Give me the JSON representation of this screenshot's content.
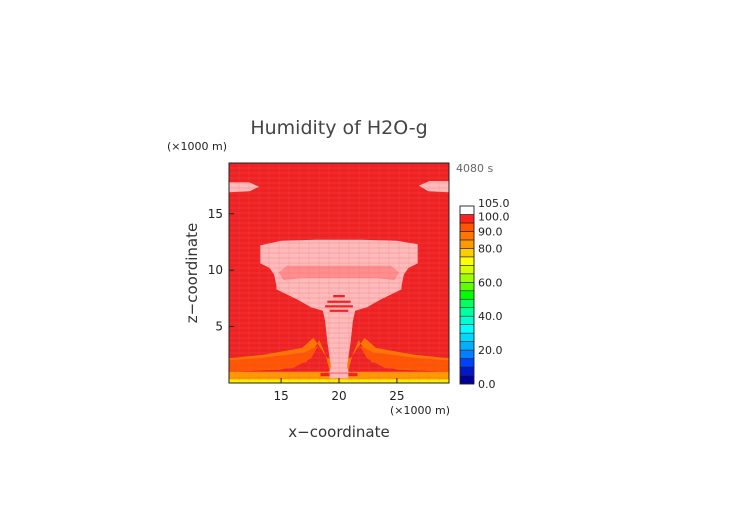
{
  "chart_data": {
    "type": "heatmap",
    "title": "Humidity of H2O-g",
    "time_label": "4080 s",
    "x_unit_label": "(×1000 m)",
    "y_unit_label": "(×1000 m)",
    "xlabel": "x−coordinate",
    "ylabel": "z−coordinate",
    "xlim": [
      10.5,
      29.5
    ],
    "ylim": [
      0,
      19.5
    ],
    "x_ticks": [
      {
        "value": 15,
        "label": "15"
      },
      {
        "value": 20,
        "label": "20"
      },
      {
        "value": 25,
        "label": "25"
      }
    ],
    "y_ticks": [
      {
        "value": 5,
        "label": "5"
      },
      {
        "value": 10,
        "label": "10"
      },
      {
        "value": 15,
        "label": "15"
      }
    ],
    "colorbar": {
      "min": 0,
      "max": 105,
      "levels": [
        {
          "from": 0,
          "to": 5,
          "color": "#000099"
        },
        {
          "from": 5,
          "to": 10,
          "color": "#0019c8"
        },
        {
          "from": 10,
          "to": 15,
          "color": "#0040ff"
        },
        {
          "from": 15,
          "to": 20,
          "color": "#0080ff"
        },
        {
          "from": 20,
          "to": 25,
          "color": "#00b0ff"
        },
        {
          "from": 25,
          "to": 30,
          "color": "#00d8ff"
        },
        {
          "from": 30,
          "to": 35,
          "color": "#00ffff"
        },
        {
          "from": 35,
          "to": 40,
          "color": "#00ffd0"
        },
        {
          "from": 40,
          "to": 45,
          "color": "#00ffa0"
        },
        {
          "from": 45,
          "to": 50,
          "color": "#00ff60"
        },
        {
          "from": 50,
          "to": 55,
          "color": "#00ff00"
        },
        {
          "from": 55,
          "to": 60,
          "color": "#60ff00"
        },
        {
          "from": 60,
          "to": 65,
          "color": "#a0ff00"
        },
        {
          "from": 65,
          "to": 70,
          "color": "#d8ff00"
        },
        {
          "from": 70,
          "to": 75,
          "color": "#ffff00"
        },
        {
          "from": 75,
          "to": 80,
          "color": "#ffcc00"
        },
        {
          "from": 80,
          "to": 85,
          "color": "#ff9900"
        },
        {
          "from": 85,
          "to": 90,
          "color": "#ff7700"
        },
        {
          "from": 90,
          "to": 95,
          "color": "#ff5500"
        },
        {
          "from": 95,
          "to": 100,
          "color": "#ff2222"
        },
        {
          "from": 100,
          "to": 105,
          "color": "#ffffff"
        }
      ],
      "labels": [
        {
          "value": 0,
          "label": "0.0"
        },
        {
          "value": 20,
          "label": "20.0"
        },
        {
          "value": 40,
          "label": "40.0"
        },
        {
          "value": 60,
          "label": "60.0"
        },
        {
          "value": 80,
          "label": "80.0"
        },
        {
          "value": 90,
          "label": "90.0"
        },
        {
          "value": 100,
          "label": "100.0"
        },
        {
          "value": 105,
          "label": "105.0"
        }
      ]
    },
    "field": {
      "background_value": 97,
      "background_color": "#ee2222",
      "grid_color": "#f06262",
      "regions": [
        {
          "id": "surface-yellow",
          "value": 72,
          "color": "#ffee00",
          "points": [
            [
              10.5,
              0
            ],
            [
              29.5,
              0
            ],
            [
              29.5,
              0.35
            ],
            [
              10.5,
              0.35
            ]
          ]
        },
        {
          "id": "surface-orange",
          "value": 82,
          "color": "#ff9900",
          "points": [
            [
              10.5,
              0.35
            ],
            [
              29.5,
              0.35
            ],
            [
              29.5,
              1.0
            ],
            [
              10.5,
              1.0
            ]
          ]
        },
        {
          "id": "low-orange-band",
          "value": 88,
          "color": "#ff7700",
          "points": [
            [
              10.5,
              1.0
            ],
            [
              15,
              1.2
            ],
            [
              17.2,
              1.9
            ],
            [
              18.3,
              3.8
            ],
            [
              18.8,
              2.6
            ],
            [
              19.2,
              1.1
            ],
            [
              20.8,
              1.1
            ],
            [
              21.2,
              2.6
            ],
            [
              21.7,
              3.8
            ],
            [
              22.8,
              1.9
            ],
            [
              25,
              1.2
            ],
            [
              29.5,
              1.0
            ],
            [
              29.5,
              2.2
            ],
            [
              26.5,
              2.5
            ],
            [
              23.2,
              3.1
            ],
            [
              22.2,
              4.0
            ],
            [
              21.0,
              2.2
            ],
            [
              19.0,
              2.2
            ],
            [
              17.8,
              4.0
            ],
            [
              16.8,
              3.1
            ],
            [
              13.5,
              2.5
            ],
            [
              10.5,
              2.2
            ]
          ]
        },
        {
          "id": "left-red-orange",
          "value": 93,
          "color": "#ff5500",
          "points": [
            [
              10.5,
              1.0
            ],
            [
              16,
              1.3
            ],
            [
              17.6,
              2.2
            ],
            [
              18.2,
              3.3
            ],
            [
              17.0,
              2.7
            ],
            [
              13,
              2.2
            ],
            [
              10.5,
              2.0
            ]
          ]
        },
        {
          "id": "right-red-orange",
          "value": 93,
          "color": "#ff5500",
          "points": [
            [
              29.5,
              1.0
            ],
            [
              24,
              1.3
            ],
            [
              22.4,
              2.2
            ],
            [
              21.8,
              3.3
            ],
            [
              23.0,
              2.7
            ],
            [
              27,
              2.2
            ],
            [
              29.5,
              2.0
            ]
          ]
        },
        {
          "id": "cloud-anvil-upper",
          "value": 102,
          "color": "#ffbbbb",
          "points": [
            [
              13.2,
              12.2
            ],
            [
              15,
              12.6
            ],
            [
              18,
              12.7
            ],
            [
              22,
              12.7
            ],
            [
              25,
              12.6
            ],
            [
              26.8,
              12.3
            ],
            [
              26.8,
              10.6
            ],
            [
              26.0,
              10.2
            ],
            [
              25.6,
              9.6
            ],
            [
              25.4,
              8.6
            ],
            [
              24.2,
              8.9
            ],
            [
              23.0,
              9.4
            ],
            [
              21.5,
              9.6
            ],
            [
              18.5,
              9.6
            ],
            [
              17.0,
              9.4
            ],
            [
              15.8,
              8.9
            ],
            [
              14.6,
              8.6
            ],
            [
              14.4,
              9.6
            ],
            [
              14.0,
              10.2
            ],
            [
              13.2,
              10.6
            ]
          ]
        },
        {
          "id": "cloud-anvil-lower",
          "value": 102,
          "color": "#ffbbbb",
          "points": [
            [
              14.6,
              9.8
            ],
            [
              17,
              10.2
            ],
            [
              23,
              10.2
            ],
            [
              25.4,
              9.8
            ],
            [
              25.4,
              8.3
            ],
            [
              24.6,
              7.9
            ],
            [
              23.6,
              7.4
            ],
            [
              22.4,
              6.7
            ],
            [
              21.4,
              6.4
            ],
            [
              21.2,
              5.5
            ],
            [
              21.0,
              3.6
            ],
            [
              20.7,
              1.5
            ],
            [
              20.9,
              0.7
            ],
            [
              19.1,
              0.7
            ],
            [
              19.3,
              1.5
            ],
            [
              19.0,
              3.6
            ],
            [
              18.8,
              5.5
            ],
            [
              18.6,
              6.4
            ],
            [
              17.6,
              6.7
            ],
            [
              16.4,
              7.4
            ],
            [
              15.4,
              7.9
            ],
            [
              14.6,
              8.3
            ]
          ]
        },
        {
          "id": "cloud-inner-dark",
          "value": 100,
          "color": "#ff8f8f",
          "points": [
            [
              15.5,
              10.4
            ],
            [
              24.5,
              10.4
            ],
            [
              25.2,
              9.8
            ],
            [
              24.8,
              9.1
            ],
            [
              23.3,
              9.3
            ],
            [
              16.7,
              9.3
            ],
            [
              15.2,
              9.1
            ],
            [
              14.8,
              9.8
            ]
          ]
        },
        {
          "id": "top-left-wisp",
          "value": 101,
          "color": "#ffbbbb",
          "points": [
            [
              10.5,
              17.8
            ],
            [
              12.2,
              17.8
            ],
            [
              13.1,
              17.4
            ],
            [
              12.3,
              17.0
            ],
            [
              10.5,
              16.9
            ]
          ]
        },
        {
          "id": "top-right-wisp",
          "value": 101,
          "color": "#ffbbbb",
          "points": [
            [
              29.5,
              17.9
            ],
            [
              27.8,
              17.9
            ],
            [
              26.9,
              17.5
            ],
            [
              27.7,
              17.0
            ],
            [
              29.5,
              16.9
            ]
          ]
        },
        {
          "id": "core-red-1",
          "value": 98,
          "color": "#ee2222",
          "points": [
            [
              19.5,
              7.8
            ],
            [
              20.5,
              7.8
            ],
            [
              20.5,
              7.6
            ],
            [
              19.5,
              7.6
            ]
          ]
        },
        {
          "id": "core-red-2",
          "value": 98,
          "color": "#ee2222",
          "points": [
            [
              19.0,
              7.3
            ],
            [
              21.0,
              7.3
            ],
            [
              21.0,
              7.1
            ],
            [
              19.0,
              7.1
            ]
          ]
        },
        {
          "id": "core-red-3",
          "value": 98,
          "color": "#ee2222",
          "points": [
            [
              18.8,
              6.9
            ],
            [
              21.2,
              6.9
            ],
            [
              21.2,
              6.7
            ],
            [
              18.8,
              6.7
            ]
          ]
        },
        {
          "id": "core-red-4",
          "value": 98,
          "color": "#ee2222",
          "points": [
            [
              19.2,
              6.5
            ],
            [
              20.8,
              6.5
            ],
            [
              20.8,
              6.3
            ],
            [
              19.2,
              6.3
            ]
          ]
        },
        {
          "id": "base-red-ring",
          "value": 98,
          "color": "#ee2222",
          "points": [
            [
              18.4,
              0.9
            ],
            [
              21.6,
              0.9
            ],
            [
              21.6,
              0.6
            ],
            [
              18.4,
              0.6
            ]
          ]
        },
        {
          "id": "base-pink",
          "value": 101,
          "color": "#ffbbbb",
          "points": [
            [
              19.2,
              0.85
            ],
            [
              20.8,
              0.85
            ],
            [
              20.8,
              0.4
            ],
            [
              19.2,
              0.4
            ]
          ]
        }
      ]
    }
  }
}
